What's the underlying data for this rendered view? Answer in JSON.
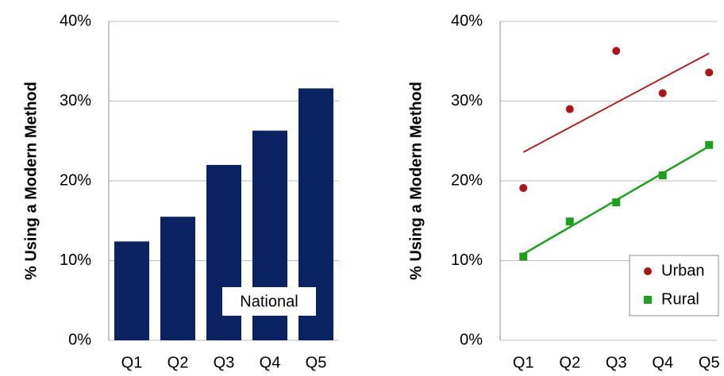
{
  "chart_data": [
    {
      "type": "bar",
      "ylabel": "% Using a Modern Method",
      "categories": [
        "Q1",
        "Q2",
        "Q3",
        "Q4",
        "Q5"
      ],
      "values": [
        12.4,
        15.5,
        22,
        26.3,
        31.6
      ],
      "color": "#0b2263",
      "ylim": [
        0,
        40
      ],
      "yticks": [
        {
          "value": 0,
          "label": "0%"
        },
        {
          "value": 10,
          "label": "10%"
        },
        {
          "value": 20,
          "label": "20%"
        },
        {
          "value": 30,
          "label": "30%"
        },
        {
          "value": 40,
          "label": "40%"
        }
      ],
      "grid": true,
      "annotation": "National"
    },
    {
      "type": "scatter",
      "ylabel": "% Using a Modern Method",
      "categories": [
        "Q1",
        "Q2",
        "Q3",
        "Q4",
        "Q5"
      ],
      "series": [
        {
          "name": "Urban",
          "color": "#b01515",
          "marker": "circle",
          "values": [
            19.1,
            29,
            36.3,
            31,
            33.6
          ]
        },
        {
          "name": "Rural",
          "color": "#1ea01e",
          "marker": "square",
          "values": [
            10.5,
            14.9,
            17.3,
            20.7,
            24.5
          ]
        }
      ],
      "trendline": true,
      "ylim": [
        0,
        40
      ],
      "yticks": [
        {
          "value": 0,
          "label": "0%"
        },
        {
          "value": 10,
          "label": "10%"
        },
        {
          "value": 20,
          "label": "20%"
        },
        {
          "value": 30,
          "label": "30%"
        },
        {
          "value": 40,
          "label": "40%"
        }
      ],
      "grid": true,
      "legend": "lower right"
    }
  ]
}
